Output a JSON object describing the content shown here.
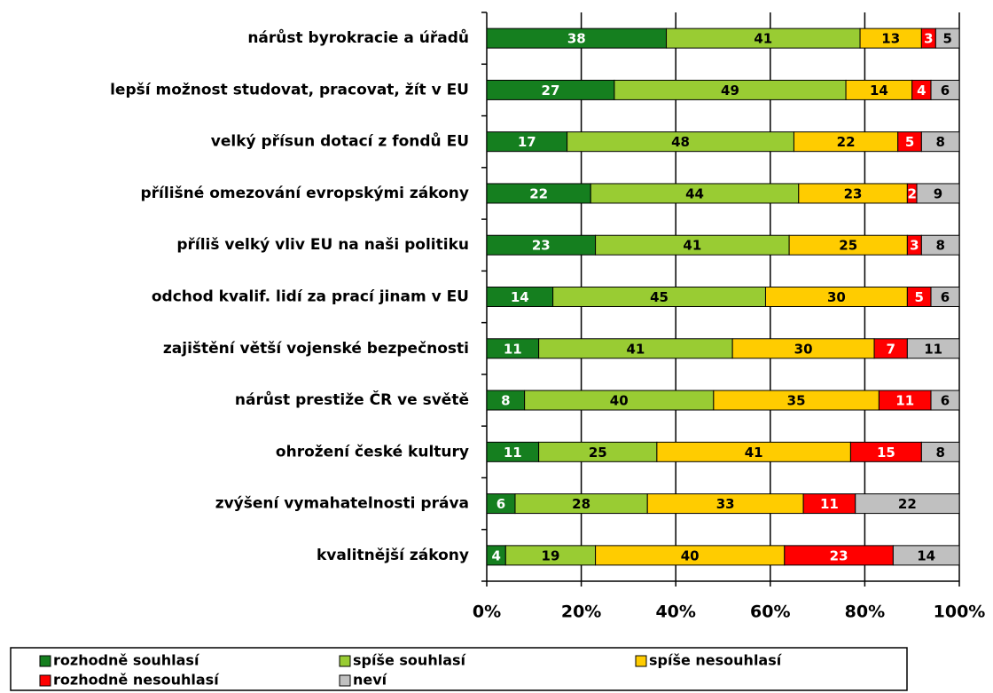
{
  "chart_data": {
    "type": "stacked_barh",
    "categories": [
      "nárůst byrokracie a úřadů",
      "lepší možnost studovat, pracovat, žít v EU",
      "velký přísun dotací z fondů EU",
      "přílišné omezování evropskými zákony",
      "příliš velký vliv EU na naši politiku",
      "odchod kvalif. lidí za prací jinam v EU",
      "zajištění větší vojenské bezpečnosti",
      "nárůst prestiže ČR ve světě",
      "ohrožení české kultury",
      "zvýšení vymahatelnosti práva",
      "kvalitnější zákony"
    ],
    "series": [
      {
        "name": "rozhodně souhlasí",
        "color": "#157f1f",
        "values": [
          38,
          27,
          17,
          22,
          23,
          14,
          11,
          8,
          11,
          6,
          4
        ]
      },
      {
        "name": "spíše souhlasí",
        "color": "#99cc33",
        "values": [
          41,
          49,
          48,
          44,
          41,
          45,
          41,
          40,
          25,
          28,
          19
        ]
      },
      {
        "name": "spíše nesouhlasí",
        "color": "#ffcc00",
        "values": [
          13,
          14,
          22,
          23,
          25,
          30,
          30,
          35,
          41,
          33,
          40
        ]
      },
      {
        "name": "rozhodně nesouhlasí",
        "color": "#ff0000",
        "values": [
          3,
          4,
          5,
          2,
          3,
          5,
          7,
          11,
          15,
          11,
          23
        ]
      },
      {
        "name": "neví",
        "color": "#c0c0c0",
        "values": [
          5,
          6,
          8,
          9,
          8,
          6,
          11,
          6,
          8,
          22,
          14
        ]
      }
    ],
    "xlim": [
      0,
      100
    ],
    "xticks": [
      {
        "value": 0,
        "label": "0%"
      },
      {
        "value": 20,
        "label": "20%"
      },
      {
        "value": 40,
        "label": "40%"
      },
      {
        "value": 60,
        "label": "60%"
      },
      {
        "value": 80,
        "label": "80%"
      },
      {
        "value": 100,
        "label": "100%"
      }
    ],
    "grid": true,
    "legend": "bottom"
  }
}
